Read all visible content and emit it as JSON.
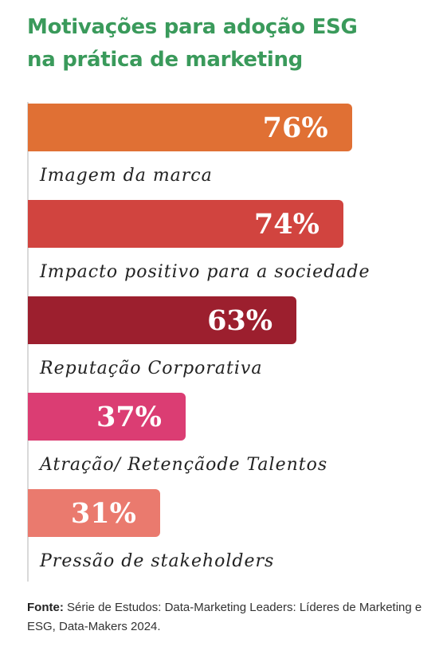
{
  "title_line1": "Motivações para adoção ESG",
  "title_line2": "na prática de marketing",
  "chart_data": {
    "type": "bar",
    "orientation": "horizontal",
    "title": "Motivações para adoção ESG na prática de marketing",
    "unit": "%",
    "xlim": [
      0,
      100
    ],
    "grid": false,
    "categories": [
      "Imagem da marca",
      "Impacto positivo para a sociedade",
      "Reputação Corporativa",
      "Atração/ Retençãode Talentos",
      "Pressão de stakeholders"
    ],
    "values": [
      76,
      74,
      63,
      37,
      31
    ],
    "value_labels": [
      "76%",
      "74%",
      "63%",
      "37%",
      "31%"
    ],
    "colors": [
      "#e07034",
      "#d1443f",
      "#9c1f2e",
      "#db3d73",
      "#ea7a6e"
    ]
  },
  "source": {
    "label": "Fonte:",
    "text": "Série de Estudos: Data-Marketing Leaders: Líderes de Marketing e ESG, Data-Makers 2024."
  }
}
